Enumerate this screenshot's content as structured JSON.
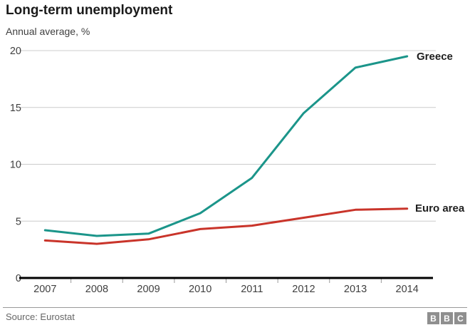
{
  "header": {
    "title": "Long-term unemployment",
    "subtitle": "Annual average, %"
  },
  "chart_data": {
    "type": "line",
    "title": "Long-term unemployment",
    "subtitle": "Annual average, %",
    "xlabel": "",
    "ylabel": "Annual average, %",
    "x": [
      "2007",
      "2008",
      "2009",
      "2010",
      "2011",
      "2012",
      "2013",
      "2014"
    ],
    "series": [
      {
        "name": "Greece",
        "color": "#1b958a",
        "values": [
          4.2,
          3.7,
          3.9,
          5.7,
          8.8,
          14.5,
          18.5,
          19.5
        ]
      },
      {
        "name": "Euro area",
        "color": "#c9342a",
        "values": [
          3.3,
          3.0,
          3.4,
          4.3,
          4.6,
          5.3,
          6.0,
          6.1
        ]
      }
    ],
    "ylim": [
      0,
      20
    ],
    "yticks": [
      0,
      5,
      10,
      15,
      20
    ],
    "grid": "horizontal-only",
    "legend_position": "line-end-labels-right"
  },
  "colors": {
    "greece_line": "#1b958a",
    "euro_area_line": "#c9342a",
    "gridline": "#cccccc",
    "axis": "#000000",
    "tick": "#999999",
    "tick_label": "#404040",
    "title_text": "#1a1a1a",
    "source_text": "#666666",
    "logo_block": "#8f8f8f"
  },
  "footer": {
    "source": "Source: Eurostat",
    "logo_letters": [
      "B",
      "B",
      "C"
    ]
  }
}
